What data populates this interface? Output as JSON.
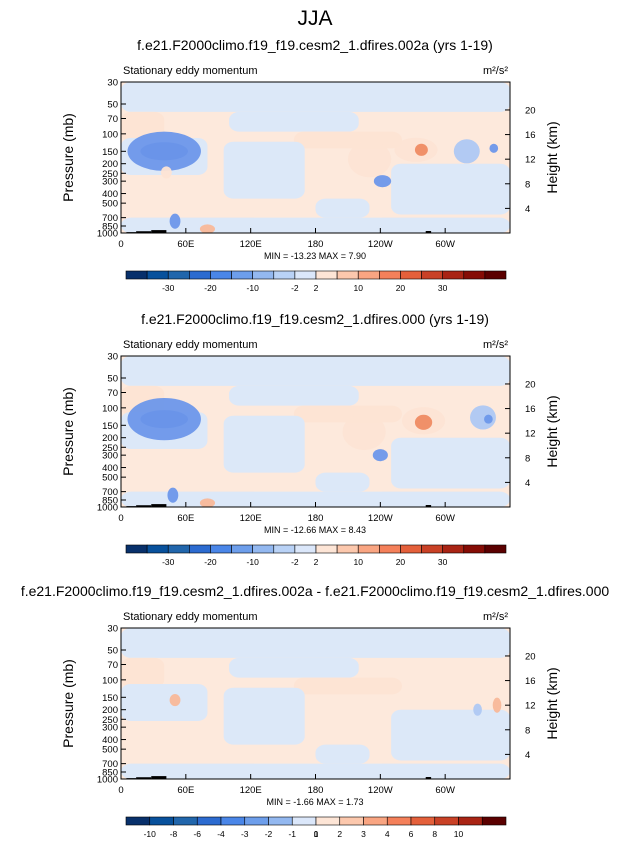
{
  "page_title": "JJA",
  "colors": {
    "neg_strong": "#2f5fd6",
    "neg_mid": "#6d97ea",
    "neg_light": "#aec8f3",
    "neg_faint": "#dce8f8",
    "pos_faint": "#fde4d4",
    "pos_light": "#f8b899",
    "pos_mid": "#ef8b63",
    "topography": "#000000"
  },
  "chart_data": [
    {
      "type": "heatmap",
      "title": "f.e21.F2000climo.f19_f19.cesm2_1.dfires.002a (yrs 1-19)",
      "subtitle": "Stationary eddy momentum",
      "units": "m²/s²",
      "ylabel": "Pressure (mb)",
      "y2label": "Height (km)",
      "x_ticks": [
        "0",
        "60E",
        "120E",
        "180",
        "120W",
        "60W"
      ],
      "x_tick_lons": [
        0,
        60,
        120,
        180,
        240,
        300
      ],
      "xlim": [
        0,
        360
      ],
      "y_ticks": [
        30,
        50,
        70,
        100,
        150,
        200,
        250,
        300,
        400,
        500,
        700,
        850,
        1000
      ],
      "ylim": [
        30,
        1000
      ],
      "y_scale": "log",
      "y2_ticks": [
        4,
        8,
        12,
        16,
        20
      ],
      "stats": "MIN = -13.23   MAX =   7.90",
      "min": -13.23,
      "max": 7.9,
      "colorbar_levels": [
        "-30",
        "-20",
        "-10",
        "-2",
        "2",
        "10",
        "20",
        "30"
      ],
      "colorbar_colors": [
        "#08306b",
        "#08519c",
        "#2166ac",
        "#2c6bd0",
        "#4a86e8",
        "#6d9eeb",
        "#93b8f0",
        "#b9d2f6",
        "#dbe7fa",
        "#fde5d6",
        "#fcc8ad",
        "#f9a582",
        "#f4805a",
        "#e4603b",
        "#c94126",
        "#a92414",
        "#850c05",
        "#5b0000"
      ],
      "anomalies": [
        {
          "lon": 40,
          "p": 150,
          "lw": 22,
          "ph": 0.06,
          "v": -6
        },
        {
          "lon": 40,
          "p": 150,
          "lw": 34,
          "ph": 0.13,
          "v": -3
        },
        {
          "lon": 50,
          "p": 760,
          "lw": 5,
          "ph": 0.05,
          "v": -3
        },
        {
          "lon": 42,
          "p": 245,
          "lw": 5,
          "ph": 0.04,
          "v": 1
        },
        {
          "lon": 80,
          "p": 910,
          "lw": 7,
          "ph": 0.03,
          "v": 2
        },
        {
          "lon": 230,
          "p": 180,
          "lw": 20,
          "ph": 0.12,
          "v": 1
        },
        {
          "lon": 273,
          "p": 145,
          "lw": 20,
          "ph": 0.08,
          "v": 1
        },
        {
          "lon": 278,
          "p": 145,
          "lw": 6,
          "ph": 0.04,
          "v": 4
        },
        {
          "lon": 242,
          "p": 300,
          "lw": 8,
          "ph": 0.04,
          "v": -3
        },
        {
          "lon": 320,
          "p": 150,
          "lw": 12,
          "ph": 0.08,
          "v": -2
        },
        {
          "lon": 345,
          "p": 140,
          "lw": 4,
          "ph": 0.03,
          "v": -3
        }
      ]
    },
    {
      "type": "heatmap",
      "title": "f.e21.F2000climo.f19_f19.cesm2_1.dfires.000 (yrs 1-19)",
      "subtitle": "Stationary eddy momentum",
      "units": "m²/s²",
      "ylabel": "Pressure (mb)",
      "y2label": "Height (km)",
      "x_ticks": [
        "0",
        "60E",
        "120E",
        "180",
        "120W",
        "60W"
      ],
      "x_tick_lons": [
        0,
        60,
        120,
        180,
        240,
        300
      ],
      "xlim": [
        0,
        360
      ],
      "y_ticks": [
        30,
        50,
        70,
        100,
        150,
        200,
        250,
        300,
        400,
        500,
        700,
        850,
        1000
      ],
      "ylim": [
        30,
        1000
      ],
      "y_scale": "log",
      "y2_ticks": [
        4,
        8,
        12,
        16,
        20
      ],
      "stats": "MIN = -12.66   MAX =   8.43",
      "min": -12.66,
      "max": 8.43,
      "colorbar_levels": [
        "-30",
        "-20",
        "-10",
        "-2",
        "2",
        "10",
        "20",
        "30"
      ],
      "colorbar_colors": [
        "#08306b",
        "#08519c",
        "#2166ac",
        "#2c6bd0",
        "#4a86e8",
        "#6d9eeb",
        "#93b8f0",
        "#b9d2f6",
        "#dbe7fa",
        "#fde5d6",
        "#fcc8ad",
        "#f9a582",
        "#f4805a",
        "#e4603b",
        "#c94126",
        "#a92414",
        "#850c05",
        "#5b0000"
      ],
      "anomalies": [
        {
          "lon": 40,
          "p": 130,
          "lw": 22,
          "ph": 0.06,
          "v": -6
        },
        {
          "lon": 40,
          "p": 130,
          "lw": 34,
          "ph": 0.14,
          "v": -3
        },
        {
          "lon": 48,
          "p": 760,
          "lw": 5,
          "ph": 0.05,
          "v": -3
        },
        {
          "lon": 80,
          "p": 910,
          "lw": 7,
          "ph": 0.03,
          "v": 2
        },
        {
          "lon": 225,
          "p": 175,
          "lw": 20,
          "ph": 0.12,
          "v": 1
        },
        {
          "lon": 280,
          "p": 135,
          "lw": 20,
          "ph": 0.09,
          "v": 1
        },
        {
          "lon": 280,
          "p": 140,
          "lw": 8,
          "ph": 0.05,
          "v": 4
        },
        {
          "lon": 240,
          "p": 300,
          "lw": 7,
          "ph": 0.04,
          "v": -3
        },
        {
          "lon": 335,
          "p": 125,
          "lw": 12,
          "ph": 0.08,
          "v": -2
        },
        {
          "lon": 340,
          "p": 130,
          "lw": 4,
          "ph": 0.03,
          "v": -4
        }
      ]
    },
    {
      "type": "heatmap",
      "title": "f.e21.F2000climo.f19_f19.cesm2_1.dfires.002a - f.e21.F2000climo.f19_f19.cesm2_1.dfires.000",
      "subtitle": "Stationary eddy momentum",
      "units": "m²/s²",
      "ylabel": "Pressure (mb)",
      "y2label": "Height (km)",
      "x_ticks": [
        "0",
        "60E",
        "120E",
        "180",
        "120W",
        "60W"
      ],
      "x_tick_lons": [
        0,
        60,
        120,
        180,
        240,
        300
      ],
      "xlim": [
        0,
        360
      ],
      "y_ticks": [
        30,
        50,
        70,
        100,
        150,
        200,
        250,
        300,
        400,
        500,
        700,
        850,
        1000
      ],
      "ylim": [
        30,
        1000
      ],
      "y_scale": "log",
      "y2_ticks": [
        4,
        8,
        12,
        16,
        20
      ],
      "stats": "MIN =  -1.66   MAX =   1.73",
      "min": -1.66,
      "max": 1.73,
      "colorbar_levels": [
        "-10",
        "-8",
        "-6",
        "-4",
        "-3",
        "-2",
        "-1",
        "0",
        "1",
        "2",
        "3",
        "4",
        "6",
        "8",
        "10"
      ],
      "colorbar_colors": [
        "#08306b",
        "#08519c",
        "#2166ac",
        "#2c6bd0",
        "#4a86e8",
        "#6d9eeb",
        "#93b8f0",
        "#dbe7fa",
        "#fde5d6",
        "#fcc8ad",
        "#f9a582",
        "#f4805a",
        "#e4603b",
        "#c94126",
        "#a92414",
        "#5b0000"
      ],
      "anomalies": [
        {
          "lon": 50,
          "p": 160,
          "lw": 5,
          "ph": 0.04,
          "v": 2
        },
        {
          "lon": 348,
          "p": 180,
          "lw": 4,
          "ph": 0.05,
          "v": 2
        },
        {
          "lon": 330,
          "p": 200,
          "lw": 4,
          "ph": 0.04,
          "v": -2
        }
      ]
    }
  ]
}
